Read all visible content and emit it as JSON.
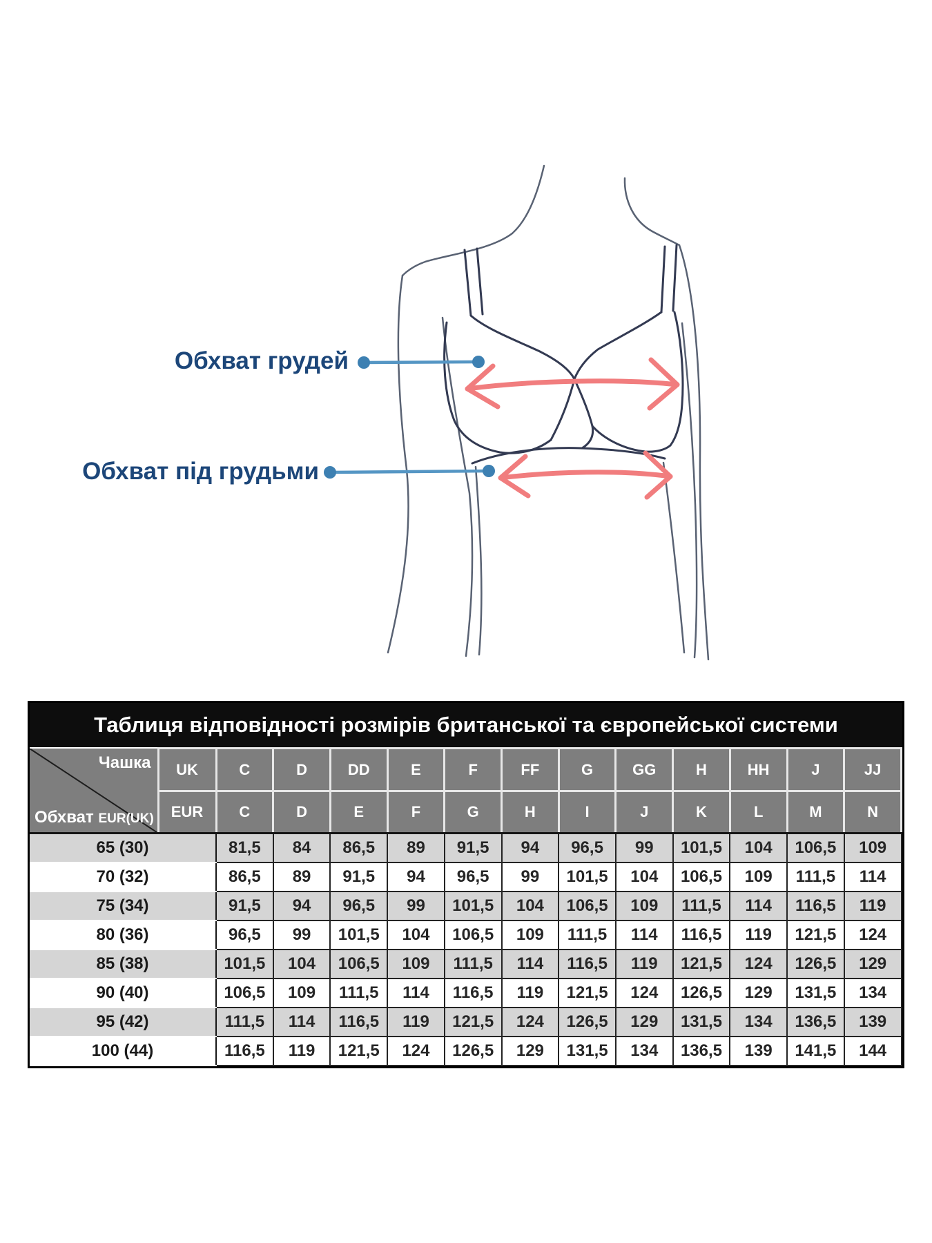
{
  "diagram": {
    "bust_label": "Обхват грудей",
    "underbust_label": "Обхват під грудьми",
    "colors": {
      "label_text": "#1c4679",
      "callout_line": "#5596c4",
      "callout_dot": "#3d80b2",
      "arrow": "#f17d7e",
      "figure_line": "#596273",
      "bra_line": "#333a52"
    }
  },
  "table": {
    "title": "Таблиця відповідності розмірів британської та європейської системи",
    "corner": {
      "cup_label": "Чашка",
      "girth_label": "Обхват",
      "girth_sub": "EUR(UK)"
    },
    "uk_label": "UK",
    "eur_label": "EUR",
    "uk_cups": [
      "C",
      "D",
      "DD",
      "E",
      "F",
      "FF",
      "G",
      "GG",
      "H",
      "HH",
      "J",
      "JJ"
    ],
    "eur_cups": [
      "C",
      "D",
      "E",
      "F",
      "G",
      "H",
      "I",
      "J",
      "K",
      "L",
      "M",
      "N"
    ],
    "rows": [
      {
        "label": "65 (30)",
        "values": [
          "81,5",
          "84",
          "86,5",
          "89",
          "91,5",
          "94",
          "96,5",
          "99",
          "101,5",
          "104",
          "106,5",
          "109"
        ]
      },
      {
        "label": "70 (32)",
        "values": [
          "86,5",
          "89",
          "91,5",
          "94",
          "96,5",
          "99",
          "101,5",
          "104",
          "106,5",
          "109",
          "111,5",
          "114"
        ]
      },
      {
        "label": "75 (34)",
        "values": [
          "91,5",
          "94",
          "96,5",
          "99",
          "101,5",
          "104",
          "106,5",
          "109",
          "111,5",
          "114",
          "116,5",
          "119"
        ]
      },
      {
        "label": "80 (36)",
        "values": [
          "96,5",
          "99",
          "101,5",
          "104",
          "106,5",
          "109",
          "111,5",
          "114",
          "116,5",
          "119",
          "121,5",
          "124"
        ]
      },
      {
        "label": "85 (38)",
        "values": [
          "101,5",
          "104",
          "106,5",
          "109",
          "111,5",
          "114",
          "116,5",
          "119",
          "121,5",
          "124",
          "126,5",
          "129"
        ]
      },
      {
        "label": "90 (40)",
        "values": [
          "106,5",
          "109",
          "111,5",
          "114",
          "116,5",
          "119",
          "121,5",
          "124",
          "126,5",
          "129",
          "131,5",
          "134"
        ]
      },
      {
        "label": "95 (42)",
        "values": [
          "111,5",
          "114",
          "116,5",
          "119",
          "121,5",
          "124",
          "126,5",
          "129",
          "131,5",
          "134",
          "136,5",
          "139"
        ]
      },
      {
        "label": "100 (44)",
        "values": [
          "116,5",
          "119",
          "121,5",
          "124",
          "126,5",
          "129",
          "131,5",
          "134",
          "136,5",
          "139",
          "141,5",
          "144"
        ]
      }
    ],
    "colors": {
      "title_bg": "#0d0d0d",
      "title_text": "#ffffff",
      "header_bg": "#7e7e7e",
      "header_text": "#ffffff",
      "header_divider": "#e7e7e7",
      "row_alt": "#d5d5d5",
      "row_base": "#ffffff",
      "grid": "#242424",
      "value_text": "#262626"
    }
  }
}
